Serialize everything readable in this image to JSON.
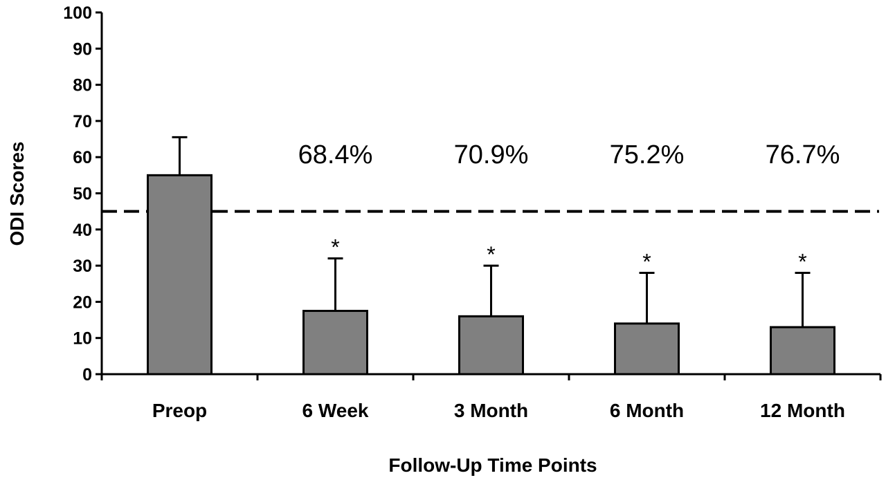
{
  "chart_data": {
    "type": "bar",
    "categories": [
      "Preop",
      "6 Week",
      "3 Month",
      "6 Month",
      "12 Month"
    ],
    "values": [
      55,
      17.5,
      16,
      14,
      13
    ],
    "error_upper": [
      65.5,
      32,
      30,
      28,
      28
    ],
    "significance": [
      "",
      "*",
      "*",
      "*",
      "*"
    ],
    "percent_labels": [
      "",
      "68.4%",
      "70.9%",
      "75.2%",
      "76.7%"
    ],
    "threshold": 45,
    "xlabel": "Follow-Up Time Points",
    "ylabel": "ODI Scores",
    "ylim": [
      0,
      100
    ],
    "yticks": [
      0,
      10,
      20,
      30,
      40,
      50,
      60,
      70,
      80,
      90,
      100
    ],
    "bar_color": "#808080",
    "grid": false,
    "legend": "none"
  }
}
